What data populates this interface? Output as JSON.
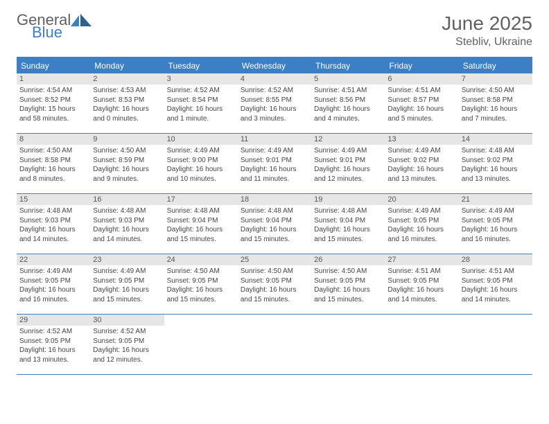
{
  "brand": {
    "part1": "General",
    "part2": "Blue",
    "color1": "#606060",
    "color2": "#3d7fc4"
  },
  "title": "June 2025",
  "location": "Stebliv, Ukraine",
  "colors": {
    "header_bg": "#3d7fc4",
    "daynum_bg": "#e6e6e6",
    "rule": "#3d7fc4",
    "text": "#444444",
    "muted": "#606060",
    "page_bg": "#ffffff"
  },
  "fonts": {
    "title_pt": 28,
    "location_pt": 16,
    "dow_pt": 12,
    "daynum_pt": 11,
    "body_pt": 10
  },
  "dow": [
    "Sunday",
    "Monday",
    "Tuesday",
    "Wednesday",
    "Thursday",
    "Friday",
    "Saturday"
  ],
  "weeks": [
    [
      {
        "n": "1",
        "sr": "Sunrise: 4:54 AM",
        "ss": "Sunset: 8:52 PM",
        "d1": "Daylight: 15 hours",
        "d2": "and 58 minutes."
      },
      {
        "n": "2",
        "sr": "Sunrise: 4:53 AM",
        "ss": "Sunset: 8:53 PM",
        "d1": "Daylight: 16 hours",
        "d2": "and 0 minutes."
      },
      {
        "n": "3",
        "sr": "Sunrise: 4:52 AM",
        "ss": "Sunset: 8:54 PM",
        "d1": "Daylight: 16 hours",
        "d2": "and 1 minute."
      },
      {
        "n": "4",
        "sr": "Sunrise: 4:52 AM",
        "ss": "Sunset: 8:55 PM",
        "d1": "Daylight: 16 hours",
        "d2": "and 3 minutes."
      },
      {
        "n": "5",
        "sr": "Sunrise: 4:51 AM",
        "ss": "Sunset: 8:56 PM",
        "d1": "Daylight: 16 hours",
        "d2": "and 4 minutes."
      },
      {
        "n": "6",
        "sr": "Sunrise: 4:51 AM",
        "ss": "Sunset: 8:57 PM",
        "d1": "Daylight: 16 hours",
        "d2": "and 5 minutes."
      },
      {
        "n": "7",
        "sr": "Sunrise: 4:50 AM",
        "ss": "Sunset: 8:58 PM",
        "d1": "Daylight: 16 hours",
        "d2": "and 7 minutes."
      }
    ],
    [
      {
        "n": "8",
        "sr": "Sunrise: 4:50 AM",
        "ss": "Sunset: 8:58 PM",
        "d1": "Daylight: 16 hours",
        "d2": "and 8 minutes."
      },
      {
        "n": "9",
        "sr": "Sunrise: 4:50 AM",
        "ss": "Sunset: 8:59 PM",
        "d1": "Daylight: 16 hours",
        "d2": "and 9 minutes."
      },
      {
        "n": "10",
        "sr": "Sunrise: 4:49 AM",
        "ss": "Sunset: 9:00 PM",
        "d1": "Daylight: 16 hours",
        "d2": "and 10 minutes."
      },
      {
        "n": "11",
        "sr": "Sunrise: 4:49 AM",
        "ss": "Sunset: 9:01 PM",
        "d1": "Daylight: 16 hours",
        "d2": "and 11 minutes."
      },
      {
        "n": "12",
        "sr": "Sunrise: 4:49 AM",
        "ss": "Sunset: 9:01 PM",
        "d1": "Daylight: 16 hours",
        "d2": "and 12 minutes."
      },
      {
        "n": "13",
        "sr": "Sunrise: 4:49 AM",
        "ss": "Sunset: 9:02 PM",
        "d1": "Daylight: 16 hours",
        "d2": "and 13 minutes."
      },
      {
        "n": "14",
        "sr": "Sunrise: 4:48 AM",
        "ss": "Sunset: 9:02 PM",
        "d1": "Daylight: 16 hours",
        "d2": "and 13 minutes."
      }
    ],
    [
      {
        "n": "15",
        "sr": "Sunrise: 4:48 AM",
        "ss": "Sunset: 9:03 PM",
        "d1": "Daylight: 16 hours",
        "d2": "and 14 minutes."
      },
      {
        "n": "16",
        "sr": "Sunrise: 4:48 AM",
        "ss": "Sunset: 9:03 PM",
        "d1": "Daylight: 16 hours",
        "d2": "and 14 minutes."
      },
      {
        "n": "17",
        "sr": "Sunrise: 4:48 AM",
        "ss": "Sunset: 9:04 PM",
        "d1": "Daylight: 16 hours",
        "d2": "and 15 minutes."
      },
      {
        "n": "18",
        "sr": "Sunrise: 4:48 AM",
        "ss": "Sunset: 9:04 PM",
        "d1": "Daylight: 16 hours",
        "d2": "and 15 minutes."
      },
      {
        "n": "19",
        "sr": "Sunrise: 4:48 AM",
        "ss": "Sunset: 9:04 PM",
        "d1": "Daylight: 16 hours",
        "d2": "and 15 minutes."
      },
      {
        "n": "20",
        "sr": "Sunrise: 4:49 AM",
        "ss": "Sunset: 9:05 PM",
        "d1": "Daylight: 16 hours",
        "d2": "and 16 minutes."
      },
      {
        "n": "21",
        "sr": "Sunrise: 4:49 AM",
        "ss": "Sunset: 9:05 PM",
        "d1": "Daylight: 16 hours",
        "d2": "and 16 minutes."
      }
    ],
    [
      {
        "n": "22",
        "sr": "Sunrise: 4:49 AM",
        "ss": "Sunset: 9:05 PM",
        "d1": "Daylight: 16 hours",
        "d2": "and 16 minutes."
      },
      {
        "n": "23",
        "sr": "Sunrise: 4:49 AM",
        "ss": "Sunset: 9:05 PM",
        "d1": "Daylight: 16 hours",
        "d2": "and 15 minutes."
      },
      {
        "n": "24",
        "sr": "Sunrise: 4:50 AM",
        "ss": "Sunset: 9:05 PM",
        "d1": "Daylight: 16 hours",
        "d2": "and 15 minutes."
      },
      {
        "n": "25",
        "sr": "Sunrise: 4:50 AM",
        "ss": "Sunset: 9:05 PM",
        "d1": "Daylight: 16 hours",
        "d2": "and 15 minutes."
      },
      {
        "n": "26",
        "sr": "Sunrise: 4:50 AM",
        "ss": "Sunset: 9:05 PM",
        "d1": "Daylight: 16 hours",
        "d2": "and 15 minutes."
      },
      {
        "n": "27",
        "sr": "Sunrise: 4:51 AM",
        "ss": "Sunset: 9:05 PM",
        "d1": "Daylight: 16 hours",
        "d2": "and 14 minutes."
      },
      {
        "n": "28",
        "sr": "Sunrise: 4:51 AM",
        "ss": "Sunset: 9:05 PM",
        "d1": "Daylight: 16 hours",
        "d2": "and 14 minutes."
      }
    ],
    [
      {
        "n": "29",
        "sr": "Sunrise: 4:52 AM",
        "ss": "Sunset: 9:05 PM",
        "d1": "Daylight: 16 hours",
        "d2": "and 13 minutes."
      },
      {
        "n": "30",
        "sr": "Sunrise: 4:52 AM",
        "ss": "Sunset: 9:05 PM",
        "d1": "Daylight: 16 hours",
        "d2": "and 12 minutes."
      },
      null,
      null,
      null,
      null,
      null
    ]
  ]
}
